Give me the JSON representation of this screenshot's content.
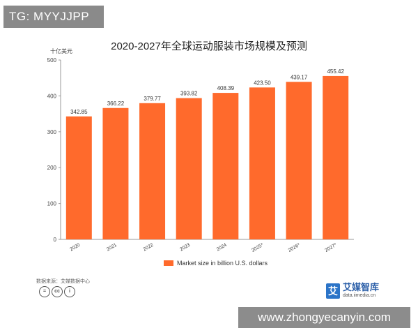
{
  "overlay": {
    "tg_label": "TG: MYYJJPP",
    "watermark_url": "www.zhongyecanyin.com"
  },
  "chart_data": {
    "type": "bar",
    "title": "2020-2027年全球运动服装市场规模及预测",
    "unit_label": "十亿美元",
    "categories": [
      "2020",
      "2021",
      "2022",
      "2023",
      "2024",
      "2025*",
      "2026*",
      "2027*"
    ],
    "values": [
      342.85,
      366.22,
      379.77,
      393.82,
      408.39,
      423.5,
      439.17,
      455.42
    ],
    "value_labels": [
      "342.85",
      "366.22",
      "379.77",
      "393.82",
      "408.39",
      "423.50",
      "439.17",
      "455.42"
    ],
    "y_ticks": [
      0,
      100,
      200,
      300,
      400,
      500
    ],
    "ylim": [
      0,
      500
    ],
    "series": [
      {
        "name": "Market size in billion U.S. dollars",
        "color": "#ff6a2c"
      }
    ],
    "grid": false,
    "legend_position": "bottom-center"
  },
  "footer": {
    "source_label": "数据来源：艾媒数据中心",
    "license_icons": [
      "=",
      "cc",
      "i"
    ],
    "brand_logo_char": "艾",
    "brand_name": "艾媒智库",
    "brand_url": "data.iimedia.cn"
  }
}
